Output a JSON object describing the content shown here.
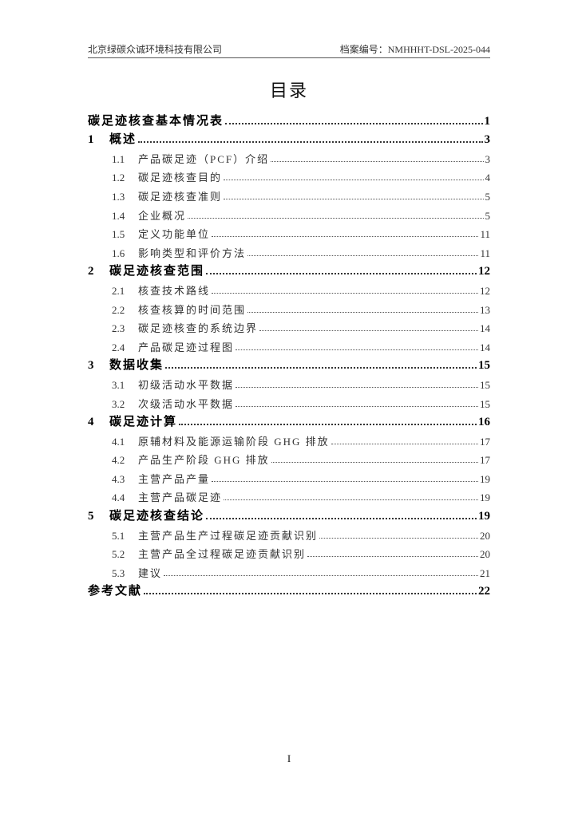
{
  "header": {
    "company": "北京绿碳众诚环境科技有限公司",
    "archive": "档案编号：NMHHHT-DSL-2025-044"
  },
  "title": "目录",
  "toc": [
    {
      "level": 1,
      "num": "",
      "text": "碳足迹核查基本情况表",
      "page": "1"
    },
    {
      "level": 1,
      "num": "1",
      "text": "概述",
      "page": "3"
    },
    {
      "level": 2,
      "num": "1.1",
      "text": "产品碳足迹（PCF）介绍",
      "page": "3"
    },
    {
      "level": 2,
      "num": "1.2",
      "text": "碳足迹核查目的",
      "page": "4"
    },
    {
      "level": 2,
      "num": "1.3",
      "text": "碳足迹核查准则",
      "page": "5"
    },
    {
      "level": 2,
      "num": "1.4",
      "text": "企业概况",
      "page": "5"
    },
    {
      "level": 2,
      "num": "1.5",
      "text": "定义功能单位",
      "page": "11"
    },
    {
      "level": 2,
      "num": "1.6",
      "text": "影响类型和评价方法",
      "page": "11"
    },
    {
      "level": 1,
      "num": "2",
      "text": "碳足迹核查范围",
      "page": "12"
    },
    {
      "level": 2,
      "num": "2.1",
      "text": "核查技术路线",
      "page": "12"
    },
    {
      "level": 2,
      "num": "2.2",
      "text": "核查核算的时间范围",
      "page": "13"
    },
    {
      "level": 2,
      "num": "2.3",
      "text": "碳足迹核查的系统边界",
      "page": "14"
    },
    {
      "level": 2,
      "num": "2.4",
      "text": "产品碳足迹过程图",
      "page": "14"
    },
    {
      "level": 1,
      "num": "3",
      "text": "数据收集",
      "page": "15"
    },
    {
      "level": 2,
      "num": "3.1",
      "text": "初级活动水平数据",
      "page": "15"
    },
    {
      "level": 2,
      "num": "3.2",
      "text": "次级活动水平数据",
      "page": "15"
    },
    {
      "level": 1,
      "num": "4",
      "text": "碳足迹计算",
      "page": "16"
    },
    {
      "level": 2,
      "num": "4.1",
      "text": "原辅材料及能源运输阶段 GHG 排放",
      "page": "17"
    },
    {
      "level": 2,
      "num": "4.2",
      "text": "产品生产阶段 GHG 排放",
      "page": "17"
    },
    {
      "level": 2,
      "num": "4.3",
      "text": "主营产品产量",
      "page": "19"
    },
    {
      "level": 2,
      "num": "4.4",
      "text": "主营产品碳足迹",
      "page": "19"
    },
    {
      "level": 1,
      "num": "5",
      "text": "碳足迹核查结论",
      "page": "19"
    },
    {
      "level": 2,
      "num": "5.1",
      "text": "主营产品生产过程碳足迹贡献识别",
      "page": "20"
    },
    {
      "level": 2,
      "num": "5.2",
      "text": "主营产品全过程碳足迹贡献识别",
      "page": "20"
    },
    {
      "level": 2,
      "num": "5.3",
      "text": "建议",
      "page": "21"
    },
    {
      "level": 1,
      "num": "",
      "text": "参考文献",
      "page": "22"
    }
  ],
  "footer": {
    "page_number": "I"
  }
}
